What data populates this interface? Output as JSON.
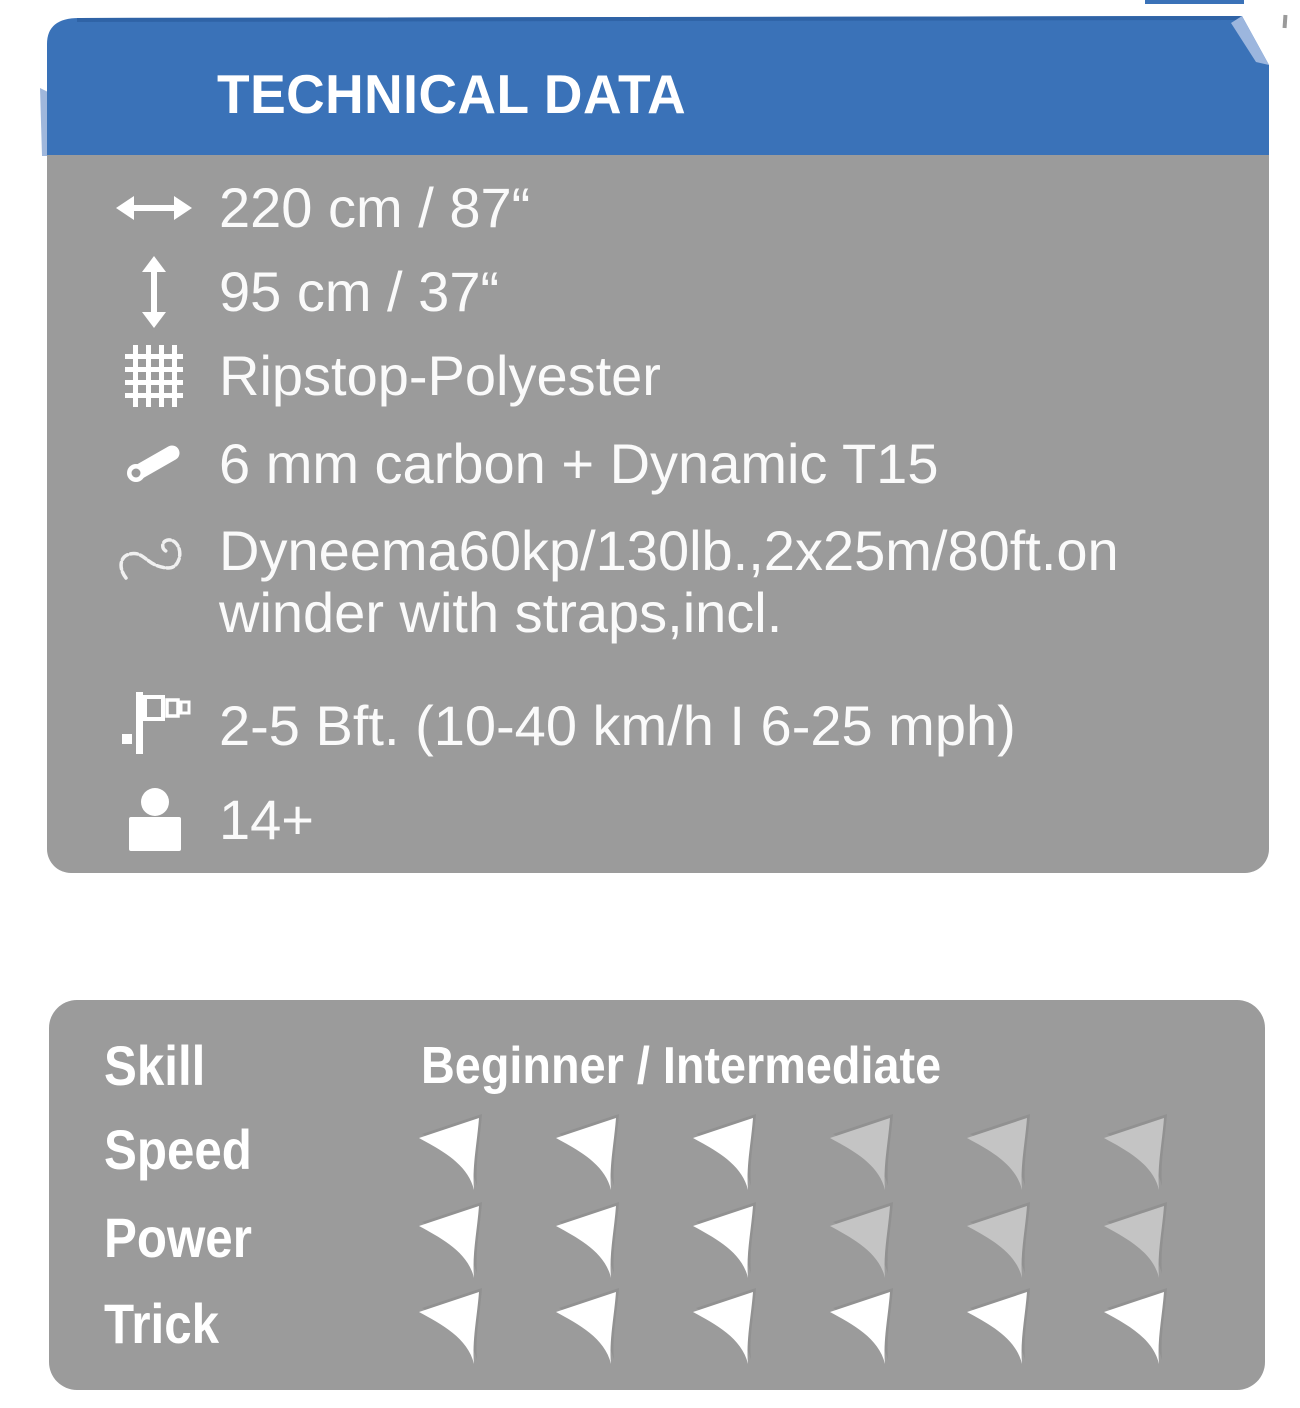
{
  "header": {
    "title": "TECHNICAL DATA"
  },
  "colors": {
    "header_blue": "#3a72b8",
    "header_blue_dark_edge": "#2f63a6",
    "header_fold_light_blue": "#9cb6de",
    "panel_gray": "#9b9b9b",
    "text_white": "#fafafa",
    "icon_active": "#ffffff",
    "icon_inactive": "#c4c4c4",
    "icon_shadow": "#8a8a8a"
  },
  "tech_specs": {
    "rows": [
      {
        "icon": "width-arrow-icon",
        "label": "wingspan",
        "text": "220 cm / 87“"
      },
      {
        "icon": "height-arrow-icon",
        "label": "height",
        "text": "95 cm / 37“"
      },
      {
        "icon": "fabric-grid-icon",
        "label": "sail-material",
        "text": "Ripstop-Polyester"
      },
      {
        "icon": "rod-icon",
        "label": "frame",
        "text": "6 mm carbon + Dynamic T15"
      },
      {
        "icon": "flying-line-icon",
        "label": "flying-line",
        "text": "Dyneema60kp/130lb.,2x25m/80ft.on",
        "text2": "winder with straps,incl."
      },
      {
        "icon": "windsock-icon",
        "label": "wind-range",
        "text": "2-5 Bft. (10-40 km/h I 6-25 mph)"
      },
      {
        "icon": "person-age-icon",
        "label": "age",
        "text": "14+"
      }
    ]
  },
  "skill_panel": {
    "skill_label": "Skill",
    "skill_value": "Beginner / Intermediate",
    "ratings": [
      {
        "label": "Speed",
        "value": 3,
        "max": 6
      },
      {
        "label": "Power",
        "value": 3,
        "max": 6
      },
      {
        "label": "Trick",
        "value": 6,
        "max": 6
      }
    ]
  }
}
